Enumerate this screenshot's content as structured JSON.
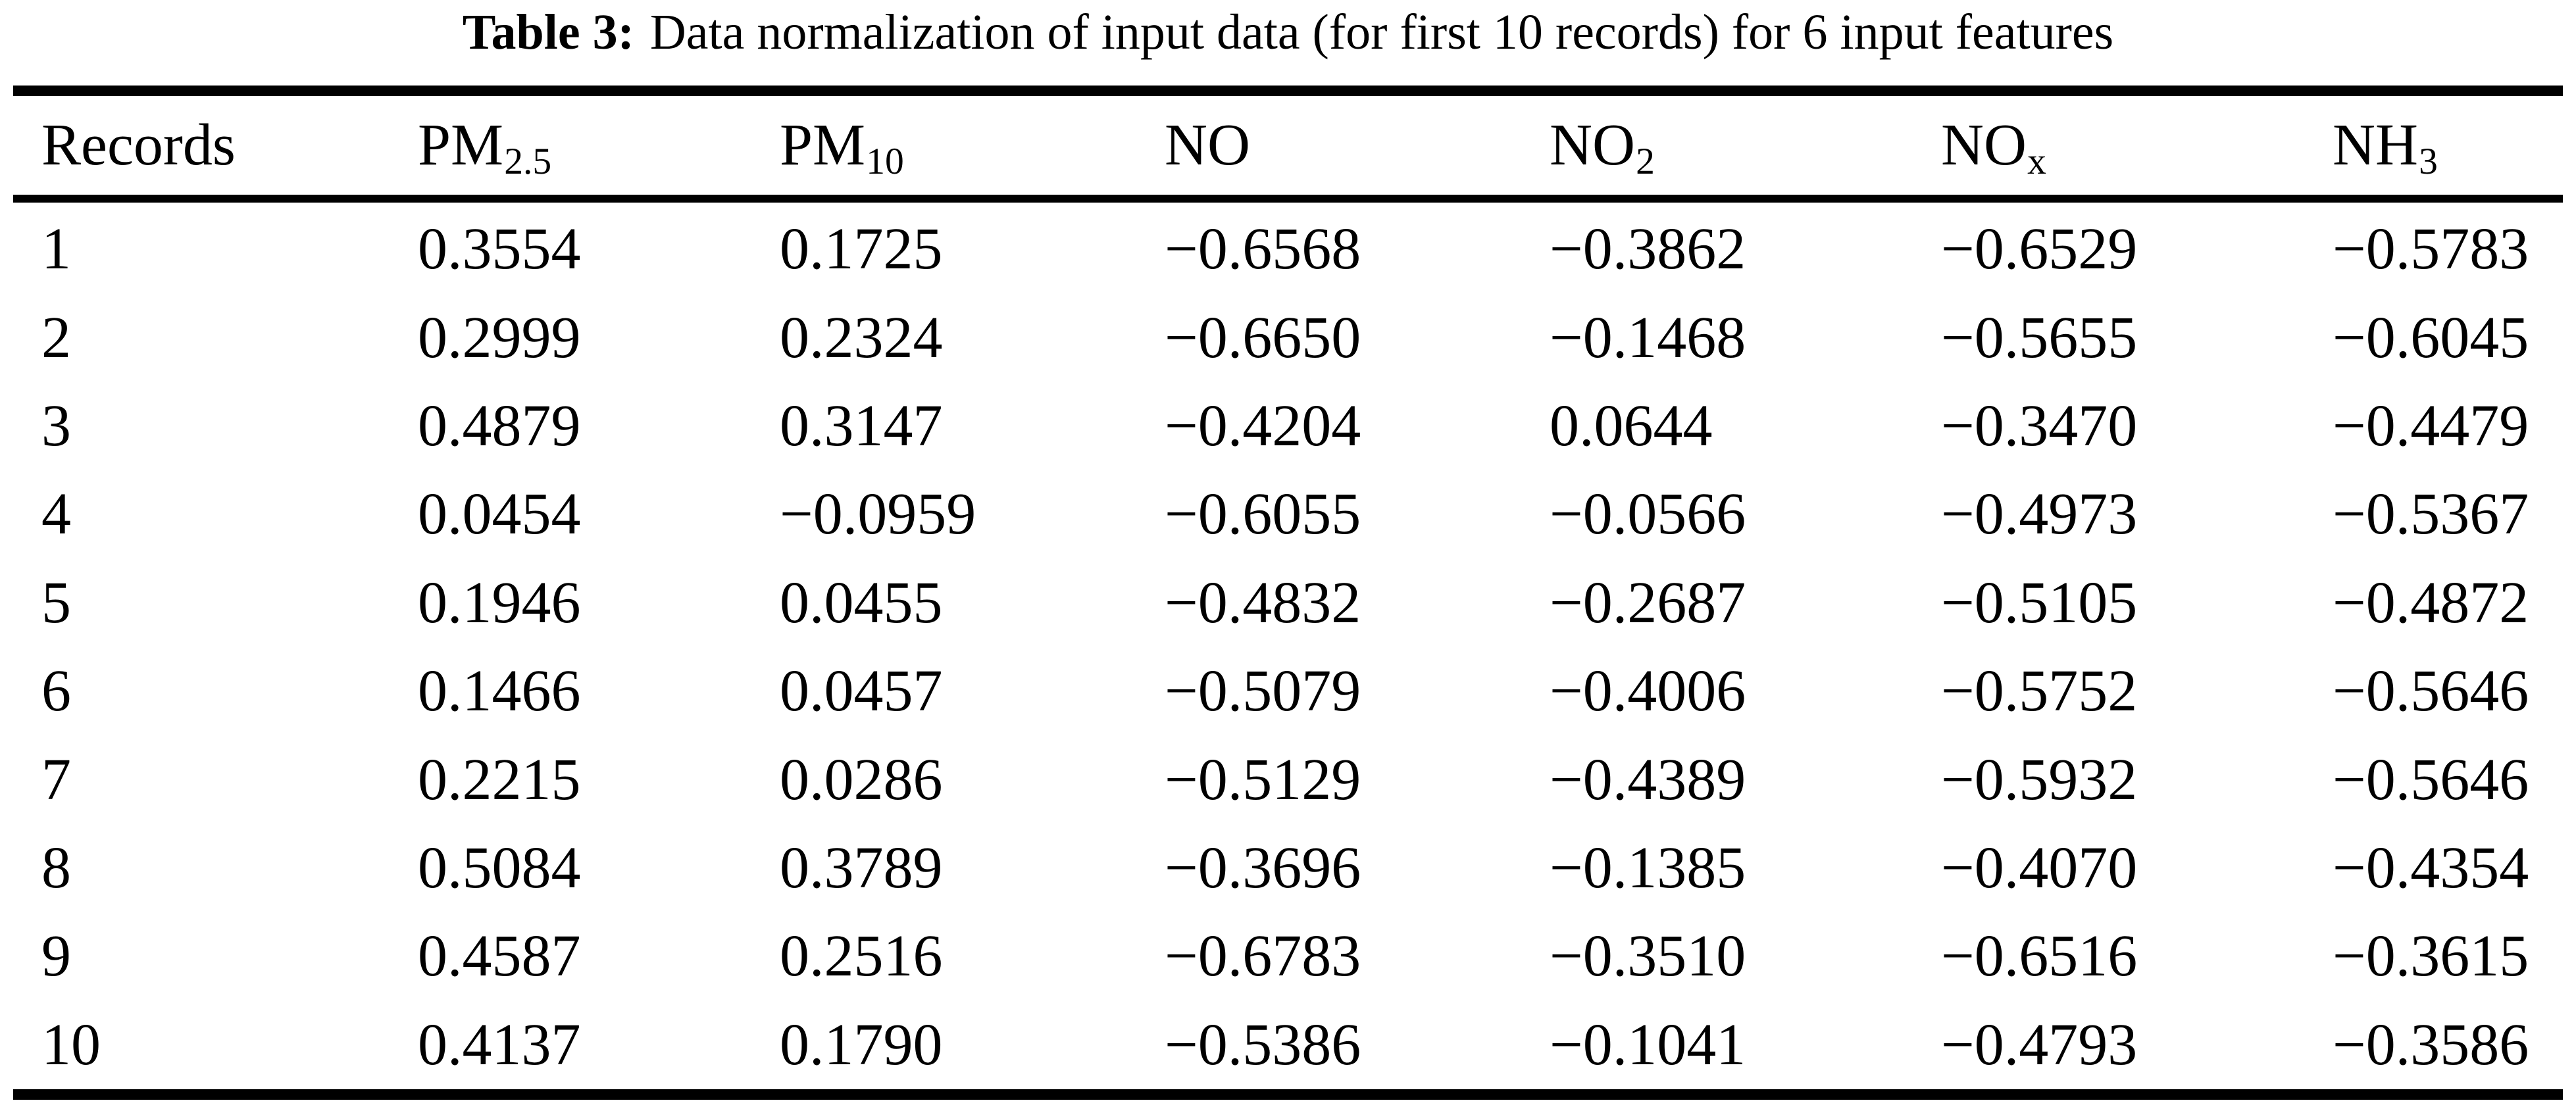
{
  "title": {
    "label": "Table 3:",
    "text": "Data normalization of input data (for first 10 records) for 6 input features"
  },
  "table": {
    "headers": [
      {
        "base": "Records",
        "sub": ""
      },
      {
        "base": "PM",
        "sub": "2.5"
      },
      {
        "base": "PM",
        "sub": "10"
      },
      {
        "base": "NO",
        "sub": ""
      },
      {
        "base": "NO",
        "sub": "2"
      },
      {
        "base": "NO",
        "sub": "x"
      },
      {
        "base": "NH",
        "sub": "3"
      }
    ],
    "rows": [
      {
        "record": "1",
        "pm25": "0.3554",
        "pm10": "0.1725",
        "no": "−0.6568",
        "no2": "−0.3862",
        "nox": "−0.6529",
        "nh3": "−0.5783"
      },
      {
        "record": "2",
        "pm25": "0.2999",
        "pm10": "0.2324",
        "no": "−0.6650",
        "no2": "−0.1468",
        "nox": "−0.5655",
        "nh3": "−0.6045"
      },
      {
        "record": "3",
        "pm25": "0.4879",
        "pm10": "0.3147",
        "no": "−0.4204",
        "no2": "0.0644",
        "nox": "−0.3470",
        "nh3": "−0.4479"
      },
      {
        "record": "4",
        "pm25": "0.0454",
        "pm10": "−0.0959",
        "no": "−0.6055",
        "no2": "−0.0566",
        "nox": "−0.4973",
        "nh3": "−0.5367"
      },
      {
        "record": "5",
        "pm25": "0.1946",
        "pm10": "0.0455",
        "no": "−0.4832",
        "no2": "−0.2687",
        "nox": "−0.5105",
        "nh3": "−0.4872"
      },
      {
        "record": "6",
        "pm25": "0.1466",
        "pm10": "0.0457",
        "no": "−0.5079",
        "no2": "−0.4006",
        "nox": "−0.5752",
        "nh3": "−0.5646"
      },
      {
        "record": "7",
        "pm25": "0.2215",
        "pm10": "0.0286",
        "no": "−0.5129",
        "no2": "−0.4389",
        "nox": "−0.5932",
        "nh3": "−0.5646"
      },
      {
        "record": "8",
        "pm25": "0.5084",
        "pm10": "0.3789",
        "no": "−0.3696",
        "no2": "−0.1385",
        "nox": "−0.4070",
        "nh3": "−0.4354"
      },
      {
        "record": "9",
        "pm25": "0.4587",
        "pm10": "0.2516",
        "no": "−0.6783",
        "no2": "−0.3510",
        "nox": "−0.6516",
        "nh3": "−0.3615"
      },
      {
        "record": "10",
        "pm25": "0.4137",
        "pm10": "0.1790",
        "no": "−0.5386",
        "no2": "−0.1041",
        "nox": "−0.4793",
        "nh3": "−0.3586"
      }
    ]
  }
}
